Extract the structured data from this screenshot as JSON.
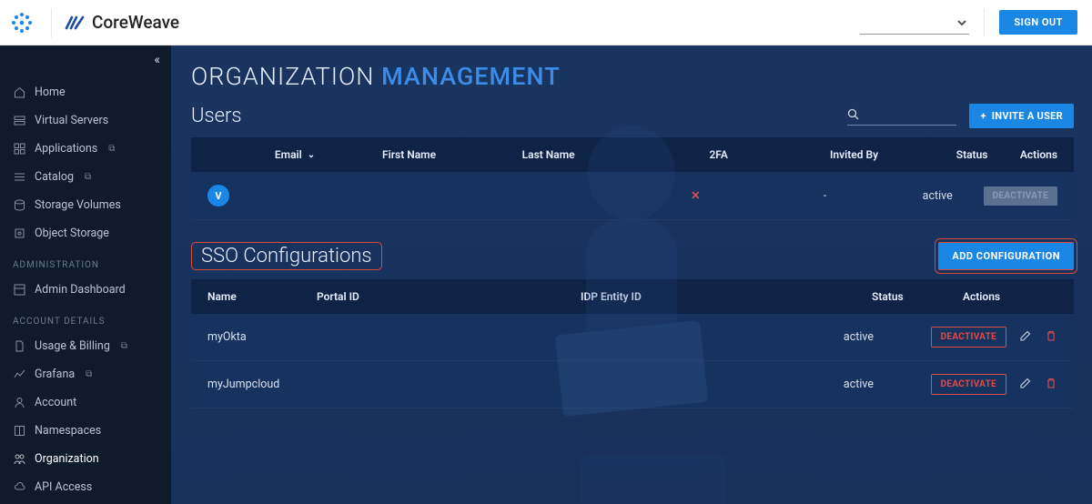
{
  "topbar": {
    "brand_name": "CoreWeave",
    "signout_label": "SIGN OUT"
  },
  "sidebar": {
    "groups": [
      {
        "label": null,
        "items": [
          {
            "label": "Home",
            "icon": "home",
            "ext": false
          },
          {
            "label": "Virtual Servers",
            "icon": "server",
            "ext": false
          },
          {
            "label": "Applications",
            "icon": "grid",
            "ext": true
          },
          {
            "label": "Catalog",
            "icon": "list",
            "ext": true
          },
          {
            "label": "Storage Volumes",
            "icon": "disk",
            "ext": false
          },
          {
            "label": "Object Storage",
            "icon": "bucket",
            "ext": false
          }
        ]
      },
      {
        "label": "ADMINISTRATION",
        "items": [
          {
            "label": "Admin Dashboard",
            "icon": "dash",
            "ext": false
          }
        ]
      },
      {
        "label": "ACCOUNT DETAILS",
        "items": [
          {
            "label": "Usage & Billing",
            "icon": "doc",
            "ext": true
          },
          {
            "label": "Grafana",
            "icon": "graf",
            "ext": true
          },
          {
            "label": "Account",
            "icon": "user",
            "ext": false
          },
          {
            "label": "Namespaces",
            "icon": "ns",
            "ext": false
          },
          {
            "label": "Organization",
            "icon": "org",
            "ext": false,
            "active": true
          },
          {
            "label": "API Access",
            "icon": "cloud",
            "ext": false
          }
        ]
      }
    ]
  },
  "page": {
    "title_a": "ORGANIZATION",
    "title_b": "MANAGEMENT"
  },
  "users": {
    "heading": "Users",
    "invite_label": "INVITE A USER",
    "columns": {
      "email": "Email",
      "first": "First Name",
      "last": "Last Name",
      "twofa": "2FA",
      "invited": "Invited By",
      "status": "Status",
      "actions": "Actions"
    },
    "rows": [
      {
        "avatar": "V",
        "email": "",
        "first": "",
        "last": "",
        "twofa": "✕",
        "invited": "-",
        "status": "active",
        "action_label": "DEACTIVATE"
      }
    ]
  },
  "sso": {
    "heading": "SSO Configurations",
    "add_label": "ADD CONFIGURATION",
    "columns": {
      "name": "Name",
      "portal": "Portal ID",
      "entity": "IDP Entity ID",
      "status": "Status",
      "actions": "Actions"
    },
    "rows": [
      {
        "name": "myOkta",
        "portal": "",
        "entity": "",
        "status": "active",
        "action_label": "DEACTIVATE"
      },
      {
        "name": "myJumpcloud",
        "portal": "",
        "entity": "",
        "status": "active",
        "action_label": "DEACTIVATE"
      }
    ]
  },
  "colors": {
    "accent": "#1b87e5",
    "danger": "#e24a4a",
    "highlight": "#d94a3a",
    "bg_content": "#17315b",
    "bg_sidebar": "#0f1a2b"
  }
}
